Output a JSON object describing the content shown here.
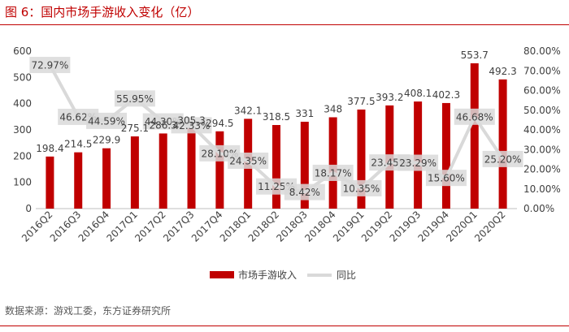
{
  "figure": {
    "title": "图 6：国内市场手游收入变化（亿）",
    "source": "数据来源：游戏工委，东方证券研究所"
  },
  "colors": {
    "bar": "#c00000",
    "line": "#d9d9d9",
    "label_box": "#d9d9d9",
    "text": "#404040",
    "axis": "#bfbfbf",
    "accent": "#c00000"
  },
  "chart_data": {
    "type": "bar",
    "title": "",
    "categories": [
      "2016Q2",
      "2016Q3",
      "2016Q4",
      "2017Q1",
      "2017Q2",
      "2017Q3",
      "2017Q4",
      "2018Q1",
      "2018Q2",
      "2018Q3",
      "2018Q4",
      "2019Q1",
      "2019Q2",
      "2019Q3",
      "2019Q4",
      "2020Q1",
      "2020Q2"
    ],
    "series": [
      {
        "name": "市场手游收入",
        "type": "bar",
        "axis": "left",
        "values": [
          198.4,
          214.5,
          229.9,
          275.1,
          286.3,
          305.3,
          294.5,
          342.1,
          318.5,
          331,
          348,
          377.5,
          393.2,
          408.1,
          402.3,
          553.7,
          492.3
        ],
        "labels": [
          "198.4",
          "214.5",
          "229.9",
          "275.1",
          "286.3",
          "305.3",
          "294.5",
          "342.1",
          "318.5",
          "331",
          "348",
          "377.5",
          "393.2",
          "408.1",
          "402.3",
          "553.7",
          "492.3"
        ]
      },
      {
        "name": "同比",
        "type": "line",
        "axis": "right",
        "values": [
          72.97,
          46.62,
          44.59,
          55.95,
          44.3,
          42.33,
          28.1,
          24.35,
          11.25,
          8.42,
          18.17,
          10.35,
          23.45,
          23.29,
          15.6,
          46.68,
          25.2
        ],
        "labels": [
          "72.97%",
          "46.62%",
          "44.59%",
          "55.95%",
          "44.30%",
          "42.33%",
          "28.10%",
          "24.35%",
          "11.25%",
          "8.42%",
          "18.17%",
          "10.35%",
          "23.45%",
          "23.29%",
          "15.60%",
          "46.68%",
          "25.20%"
        ]
      }
    ],
    "y_left": {
      "min": 0,
      "max": 600,
      "ticks": [
        "0",
        "100",
        "200",
        "300",
        "400",
        "500",
        "600"
      ]
    },
    "y_right": {
      "min": 0,
      "max": 80,
      "ticks": [
        "0.00%",
        "10.00%",
        "20.00%",
        "30.00%",
        "40.00%",
        "50.00%",
        "60.00%",
        "70.00%",
        "80.00%"
      ]
    },
    "legend": {
      "position": "bottom",
      "items": [
        "市场手游收入",
        "同比"
      ]
    }
  }
}
